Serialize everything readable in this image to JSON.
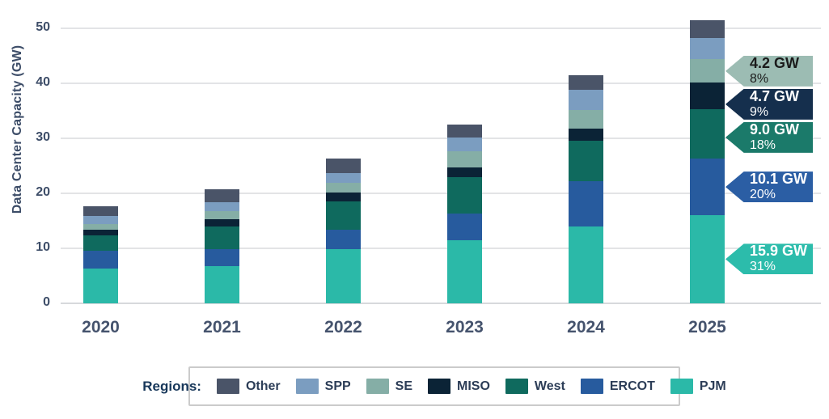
{
  "chart_data": {
    "type": "bar",
    "stacked": true,
    "title": "",
    "xlabel": "",
    "ylabel": "Data Center Capacity (GW)",
    "ylim": [
      0,
      50
    ],
    "yticks": [
      0,
      10,
      20,
      30,
      40,
      50
    ],
    "grid": true,
    "categories": [
      "2020",
      "2021",
      "2022",
      "2023",
      "2024",
      "2025"
    ],
    "series": [
      {
        "name": "PJM",
        "color": "#2bb9a8",
        "values": [
          6.2,
          6.7,
          9.7,
          11.4,
          13.9,
          15.9
        ]
      },
      {
        "name": "ERCOT",
        "color": "#275b9e",
        "values": [
          3.3,
          3.0,
          3.5,
          4.7,
          8.1,
          10.1
        ]
      },
      {
        "name": "West",
        "color": "#0f6a5e",
        "values": [
          2.7,
          4.1,
          5.2,
          6.6,
          7.3,
          9.0
        ]
      },
      {
        "name": "MISO",
        "color": "#0b2336",
        "values": [
          1.0,
          1.4,
          1.6,
          1.8,
          2.2,
          4.7
        ]
      },
      {
        "name": "SE",
        "color": "#85aea6",
        "values": [
          1.0,
          1.4,
          1.7,
          2.8,
          3.3,
          4.2
        ]
      },
      {
        "name": "SPP",
        "color": "#7b9dc0",
        "values": [
          1.5,
          1.6,
          1.8,
          2.5,
          3.6,
          3.9
        ]
      },
      {
        "name": "Other",
        "color": "#4a5468",
        "values": [
          1.8,
          2.3,
          2.5,
          2.4,
          2.6,
          3.2
        ]
      }
    ],
    "callouts": [
      {
        "series": "SE",
        "value_label": "4.2 GW",
        "pct_label": "8%",
        "flag_color": "#9cbcb3",
        "text_color": "#1b1b1b"
      },
      {
        "series": "MISO",
        "value_label": "4.7 GW",
        "pct_label": "9%",
        "flag_color": "#152f4d",
        "text_color": "#ffffff"
      },
      {
        "series": "West",
        "value_label": "9.0 GW",
        "pct_label": "18%",
        "flag_color": "#1b7a6a",
        "text_color": "#ffffff"
      },
      {
        "series": "ERCOT",
        "value_label": "10.1 GW",
        "pct_label": "20%",
        "flag_color": "#2b5ea4",
        "text_color": "#ffffff"
      },
      {
        "series": "PJM",
        "value_label": "15.9 GW",
        "pct_label": "31%",
        "flag_color": "#2cbcab",
        "text_color": "#ffffff"
      }
    ],
    "legend": {
      "label": "Regions:",
      "position": "bottom",
      "entries": [
        "Other",
        "SPP",
        "SE",
        "MISO",
        "West",
        "ERCOT",
        "PJM"
      ]
    }
  }
}
